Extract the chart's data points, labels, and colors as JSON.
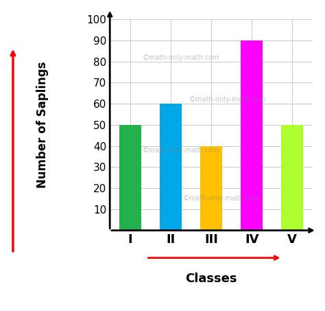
{
  "categories": [
    "I",
    "II",
    "III",
    "IV",
    "V"
  ],
  "values": [
    50,
    60,
    40,
    90,
    50
  ],
  "bar_colors": [
    "#22b14c",
    "#00a8e8",
    "#ffc000",
    "#ff00ff",
    "#adff2f"
  ],
  "ylabel": "Number of Saplings",
  "xlabel": "Classes",
  "ylim": [
    0,
    100
  ],
  "yticks": [
    10,
    20,
    30,
    40,
    50,
    60,
    70,
    80,
    90,
    100
  ],
  "grid_color": "#cccccc",
  "background_color": "#ffffff",
  "watermark": "©math-only-math.com",
  "bar_width": 0.55
}
